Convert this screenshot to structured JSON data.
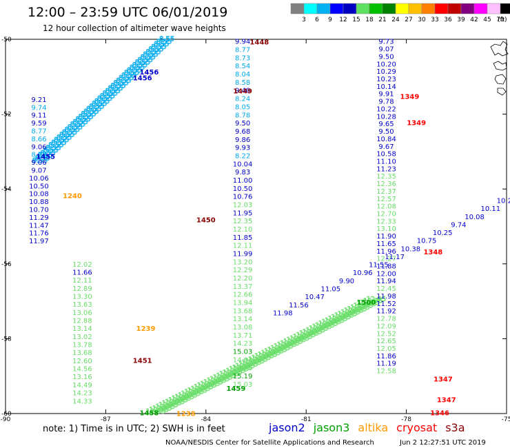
{
  "header": {
    "title": "12:00 – 23:59 UTC 06/01/2019",
    "subtitle": "12 hour collection of altimeter wave heights"
  },
  "scale": {
    "labels": [
      "3",
      "6",
      "9",
      "12",
      "15",
      "18",
      "21",
      "24",
      "27",
      "30",
      "33",
      "36",
      "39",
      "42",
      "45",
      "70"
    ],
    "unit": "(ft)",
    "colors": [
      "#808080",
      "#00ffff",
      "#00b0f0",
      "#0000ff",
      "#0000c0",
      "#60e060",
      "#00c000",
      "#008000",
      "#ffff00",
      "#ffc000",
      "#ff8000",
      "#ff0000",
      "#c00000",
      "#800080",
      "#ff00ff",
      "#ffc0ff",
      "#000000"
    ]
  },
  "note": "note:  1) Time is in UTC;  2) SWH is in feet",
  "footer": {
    "left": "NOAA/NESDIS Center for Satellite Applications and Research",
    "right": "Jun  2 12:27:51 UTC 2019"
  },
  "chart_data": {
    "type": "scatter",
    "title": "12:00 – 23:59 UTC 06/01/2019",
    "subtitle": "12 hour collection of altimeter wave heights",
    "xlim": [
      -90,
      -75
    ],
    "ylim": [
      -60,
      -50
    ],
    "x_ticks": [
      "-90",
      "-87",
      "-84",
      "-81",
      "-78",
      "-75"
    ],
    "y_ticks": [
      "-50",
      "-52",
      "-54",
      "-56",
      "-58",
      "-60"
    ],
    "legend": [
      {
        "name": "jason2",
        "color": "#0000cc"
      },
      {
        "name": "jason3",
        "color": "#00a000"
      },
      {
        "name": "altika",
        "color": "#ff9900"
      },
      {
        "name": "cryosat",
        "color": "#ff0000"
      },
      {
        "name": "s3a",
        "color": "#8b0000"
      }
    ],
    "series": [
      {
        "name": "track-a",
        "color": "#0000cc",
        "x": -89.0,
        "y_start": -51.6,
        "step": 0.21,
        "values": [
          "9.21",
          "9.74",
          "9.11",
          "9.59",
          "8.77",
          "8.66",
          "9.06",
          "8.79",
          "9.06",
          "9.07",
          "10.06",
          "10.50",
          "10.08",
          "10.88",
          "10.70",
          "11.29",
          "11.47",
          "11.76",
          "11.97"
        ],
        "colors": [
          "#0000cc",
          "#00aaee",
          "#0000cc",
          "#0000cc",
          "#00aaee",
          "#00aaee",
          "#0000cc",
          "#00aaee",
          "#0000cc",
          "#0000cc",
          "#0000cc",
          "#0000cc",
          "#0000cc",
          "#0000cc",
          "#0000cc",
          "#0000cc",
          "#0000cc",
          "#0000cc",
          "#0000cc"
        ]
      },
      {
        "name": "track-a2",
        "color": "#66dd66",
        "x": -87.7,
        "y_start": -56.0,
        "step": 0.215,
        "values": [
          "12.02",
          "11.66",
          "12.11",
          "12.89",
          "13.30",
          "13.63",
          "13.06",
          "12.88",
          "13.14",
          "13.02",
          "13.78",
          "13.68",
          "12.60",
          "14.56",
          "13.16",
          "14.49",
          "14.23",
          "14.33"
        ],
        "colors": [
          "#66dd66",
          "#0000cc",
          "#66dd66",
          "#66dd66",
          "#66dd66",
          "#66dd66",
          "#66dd66",
          "#66dd66",
          "#66dd66",
          "#66dd66",
          "#66dd66",
          "#66dd66",
          "#66dd66",
          "#66dd66",
          "#66dd66",
          "#66dd66",
          "#66dd66",
          "#66dd66"
        ]
      },
      {
        "name": "track-b",
        "color": "#00aaee",
        "x": -82.9,
        "y_start": -50.05,
        "step": 0.218,
        "values": [
          "9.94",
          "8.77",
          "8.73",
          "8.54",
          "8.04",
          "8.58",
          "9.40",
          "8.24",
          "8.05",
          "8.78",
          "9.50",
          "9.68",
          "9.86",
          "9.93",
          "8.22",
          "10.04",
          "9.83",
          "11.00",
          "10.50",
          "10.76",
          "12.03",
          "11.95",
          "12.35",
          "12.10",
          "11.85",
          "12.11",
          "11.99",
          "13.20",
          "12.29",
          "12.20",
          "13.37",
          "12.66",
          "13.94",
          "13.68",
          "13.14",
          "13.08",
          "13.71",
          "14.23",
          "15.03",
          "14.94",
          "14.76",
          "15.19",
          "15.03"
        ],
        "colors": [
          "#0000cc",
          "#00aaee",
          "#00aaee",
          "#00aaee",
          "#00aaee",
          "#00aaee",
          "#0000cc",
          "#00aaee",
          "#00aaee",
          "#00aaee",
          "#0000cc",
          "#0000cc",
          "#0000cc",
          "#0000cc",
          "#00aaee",
          "#0000cc",
          "#0000cc",
          "#0000cc",
          "#0000cc",
          "#0000cc",
          "#66dd66",
          "#0000cc",
          "#66dd66",
          "#66dd66",
          "#0000cc",
          "#66dd66",
          "#0000cc",
          "#66dd66",
          "#66dd66",
          "#66dd66",
          "#66dd66",
          "#66dd66",
          "#66dd66",
          "#66dd66",
          "#66dd66",
          "#66dd66",
          "#66dd66",
          "#66dd66",
          "#00a000",
          "#66dd66",
          "#66dd66",
          "#00a000",
          "#66dd66"
        ]
      },
      {
        "name": "track-c",
        "color": "#0000cc",
        "x": -78.6,
        "y_start": -50.05,
        "step": 0.2,
        "values": [
          "9.73",
          "9.07",
          "9.50",
          "10.20",
          "10.29",
          "10.23",
          "10.14",
          "9.91",
          "9.78",
          "10.22",
          "10.28",
          "9.65",
          "9.50",
          "10.84",
          "9.67",
          "10.58",
          "11.10",
          "11.23",
          "12.35",
          "12.36",
          "12.37",
          "12.57",
          "12.08",
          "12.70",
          "12.33",
          "13.10",
          "11.90",
          "11.65",
          "11.96",
          "12.27",
          "11.88",
          "12.00",
          "11.94",
          "12.45",
          "11.98",
          "11.52",
          "11.92",
          "12.78",
          "12.09",
          "12.52",
          "12.65",
          "12.05",
          "11.86",
          "11.19",
          "12.58"
        ],
        "colors": [
          "#0000cc",
          "#0000cc",
          "#0000cc",
          "#0000cc",
          "#0000cc",
          "#0000cc",
          "#0000cc",
          "#0000cc",
          "#0000cc",
          "#0000cc",
          "#0000cc",
          "#0000cc",
          "#0000cc",
          "#0000cc",
          "#0000cc",
          "#0000cc",
          "#0000cc",
          "#0000cc",
          "#66dd66",
          "#66dd66",
          "#66dd66",
          "#66dd66",
          "#66dd66",
          "#66dd66",
          "#66dd66",
          "#66dd66",
          "#0000cc",
          "#0000cc",
          "#0000cc",
          "#66dd66",
          "#0000cc",
          "#0000cc",
          "#0000cc",
          "#66dd66",
          "#0000cc",
          "#0000cc",
          "#0000cc",
          "#66dd66",
          "#66dd66",
          "#66dd66",
          "#66dd66",
          "#66dd66",
          "#0000cc",
          "#0000cc",
          "#66dd66"
        ]
      },
      {
        "name": "track-d",
        "color": "#0000cc",
        "x_start": -81.7,
        "y_start": -57.3,
        "x_end": -75.0,
        "y_end": -54.3,
        "values": [
          "11.98",
          "11.56",
          "10.47",
          "11.05",
          "9.90",
          "10.96",
          "11.55",
          "11.17",
          "10.38",
          "10.75",
          "10.25",
          "9.74",
          "10.08",
          "10.11",
          "10.25"
        ],
        "colors": [
          "#0000cc",
          "#0000cc",
          "#0000cc",
          "#0000cc",
          "#0000cc",
          "#0000cc",
          "#0000cc",
          "#0000cc",
          "#0000cc",
          "#0000cc",
          "#0000cc",
          "#0000cc",
          "#0000cc",
          "#0000cc",
          "#0000cc"
        ]
      }
    ],
    "time_labels": [
      {
        "text": "1448",
        "x": -82.4,
        "y": -50.05,
        "color": "#8b0000"
      },
      {
        "text": "1456",
        "x": -85.7,
        "y": -50.85,
        "color": "#0000cc"
      },
      {
        "text": "1456",
        "x": -85.9,
        "y": -51.0,
        "color": "#0000cc"
      },
      {
        "text": "1449",
        "x": -82.9,
        "y": -51.35,
        "color": "#8b0000"
      },
      {
        "text": "1349",
        "x": -77.9,
        "y": -51.5,
        "color": "#ff0000"
      },
      {
        "text": "1349",
        "x": -77.7,
        "y": -52.2,
        "color": "#ff0000"
      },
      {
        "text": "1455",
        "x": -88.8,
        "y": -53.1,
        "color": "#0000cc"
      },
      {
        "text": "1240",
        "x": -88.0,
        "y": -54.15,
        "color": "#ff9900"
      },
      {
        "text": "1450",
        "x": -84.0,
        "y": -54.8,
        "color": "#8b0000"
      },
      {
        "text": "1348",
        "x": -77.2,
        "y": -55.65,
        "color": "#ff0000"
      },
      {
        "text": "1500",
        "x": -79.2,
        "y": -57.0,
        "color": "#00a000"
      },
      {
        "text": "1239",
        "x": -85.8,
        "y": -57.7,
        "color": "#ff9900"
      },
      {
        "text": "1451",
        "x": -85.9,
        "y": -58.55,
        "color": "#8b0000"
      },
      {
        "text": "1459",
        "x": -83.1,
        "y": -59.3,
        "color": "#00a000"
      },
      {
        "text": "1347",
        "x": -76.9,
        "y": -59.05,
        "color": "#ff0000"
      },
      {
        "text": "1347",
        "x": -76.8,
        "y": -59.6,
        "color": "#ff0000"
      },
      {
        "text": "1458",
        "x": -85.7,
        "y": -59.95,
        "color": "#00a000"
      },
      {
        "text": "1238",
        "x": -84.6,
        "y": -59.97,
        "color": "#ff9900"
      },
      {
        "text": "1346",
        "x": -77.0,
        "y": -59.95,
        "color": "#ff0000"
      }
    ],
    "dense_tracks": [
      {
        "name": "cyan-ne",
        "color": "#00aaee",
        "x1": -89.2,
        "y1": -53.3,
        "x2": -85.4,
        "y2": -50.05,
        "count": 48,
        "sample": "8.55"
      },
      {
        "name": "green-ne",
        "color": "#66dd66",
        "x1": -85.8,
        "y1": -60.0,
        "x2": -79.2,
        "y2": -57.0,
        "count": 70,
        "sample": "12.95"
      }
    ]
  }
}
